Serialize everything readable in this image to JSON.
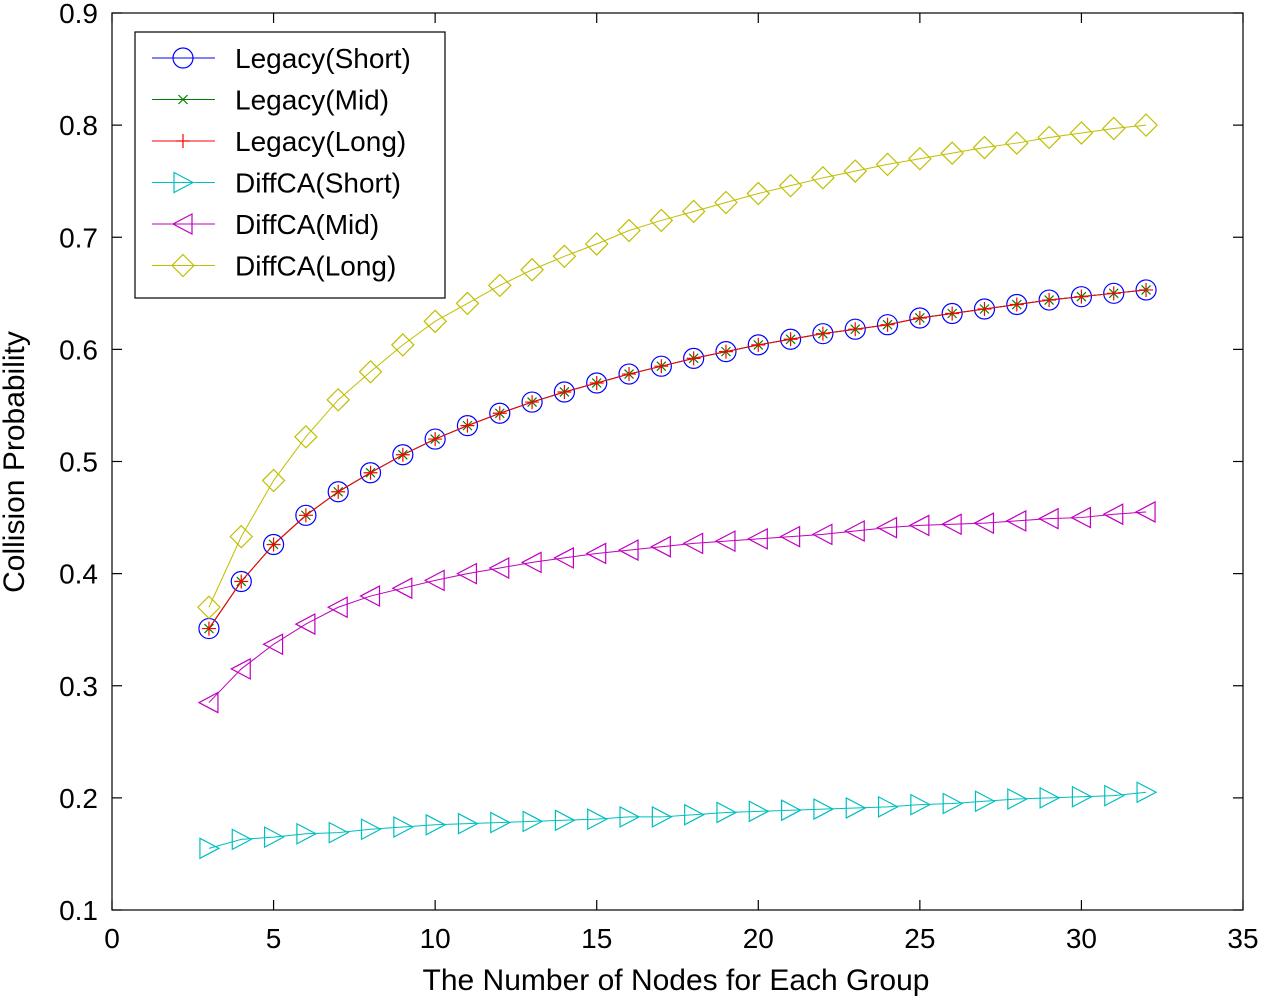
{
  "chart_data": {
    "type": "line",
    "title": "",
    "xlabel": "The Number of Nodes for Each Group",
    "ylabel": "Collision Probability",
    "xlim": [
      0,
      35
    ],
    "ylim": [
      0.1,
      0.9
    ],
    "xticks": [
      0,
      5,
      10,
      15,
      20,
      25,
      30,
      35
    ],
    "yticks": [
      0.1,
      0.2,
      0.3,
      0.4,
      0.5,
      0.6,
      0.7,
      0.8,
      0.9
    ],
    "xtick_labels": [
      "0",
      "5",
      "10",
      "15",
      "20",
      "25",
      "30",
      "35"
    ],
    "ytick_labels": [
      "0.1",
      "0.2",
      "0.3",
      "0.4",
      "0.5",
      "0.6",
      "0.7",
      "0.8",
      "0.9"
    ],
    "grid": false,
    "legend_position": "top-left",
    "x": [
      3,
      4,
      5,
      6,
      7,
      8,
      9,
      10,
      11,
      12,
      13,
      14,
      15,
      16,
      17,
      18,
      19,
      20,
      21,
      22,
      23,
      24,
      25,
      26,
      27,
      28,
      29,
      30,
      31,
      32
    ],
    "series": [
      {
        "name": "Legacy(Short)",
        "color": "#0000ff",
        "marker": "circle",
        "values": [
          0.351,
          0.393,
          0.426,
          0.452,
          0.473,
          0.49,
          0.506,
          0.52,
          0.532,
          0.543,
          0.553,
          0.562,
          0.57,
          0.578,
          0.585,
          0.592,
          0.598,
          0.604,
          0.609,
          0.614,
          0.618,
          0.622,
          0.628,
          0.632,
          0.636,
          0.64,
          0.644,
          0.647,
          0.65,
          0.653
        ]
      },
      {
        "name": "Legacy(Mid)",
        "color": "#008000",
        "marker": "x",
        "values": [
          0.351,
          0.393,
          0.426,
          0.452,
          0.473,
          0.49,
          0.506,
          0.52,
          0.532,
          0.543,
          0.553,
          0.562,
          0.57,
          0.578,
          0.585,
          0.592,
          0.598,
          0.604,
          0.609,
          0.614,
          0.618,
          0.622,
          0.628,
          0.632,
          0.636,
          0.64,
          0.644,
          0.647,
          0.65,
          0.653
        ]
      },
      {
        "name": "Legacy(Long)",
        "color": "#ff0000",
        "marker": "plus",
        "values": [
          0.351,
          0.393,
          0.426,
          0.452,
          0.473,
          0.49,
          0.506,
          0.52,
          0.532,
          0.543,
          0.553,
          0.562,
          0.57,
          0.578,
          0.585,
          0.592,
          0.598,
          0.604,
          0.609,
          0.614,
          0.618,
          0.622,
          0.628,
          0.632,
          0.636,
          0.64,
          0.644,
          0.647,
          0.65,
          0.653
        ]
      },
      {
        "name": "DiffCA(Short)",
        "color": "#00bfbf",
        "marker": "triangle-right",
        "values": [
          0.155,
          0.163,
          0.165,
          0.168,
          0.169,
          0.172,
          0.174,
          0.176,
          0.177,
          0.178,
          0.179,
          0.18,
          0.181,
          0.183,
          0.183,
          0.185,
          0.187,
          0.188,
          0.189,
          0.19,
          0.191,
          0.192,
          0.194,
          0.195,
          0.197,
          0.199,
          0.2,
          0.201,
          0.202,
          0.205
        ]
      },
      {
        "name": "DiffCA(Mid)",
        "color": "#bf00bf",
        "marker": "triangle-left",
        "values": [
          0.285,
          0.315,
          0.337,
          0.355,
          0.37,
          0.38,
          0.387,
          0.394,
          0.4,
          0.405,
          0.41,
          0.414,
          0.418,
          0.421,
          0.424,
          0.427,
          0.429,
          0.431,
          0.433,
          0.435,
          0.438,
          0.441,
          0.443,
          0.444,
          0.445,
          0.447,
          0.449,
          0.45,
          0.453,
          0.455
        ]
      },
      {
        "name": "DiffCA(Long)",
        "color": "#bfbf00",
        "marker": "diamond",
        "values": [
          0.37,
          0.433,
          0.483,
          0.522,
          0.555,
          0.58,
          0.604,
          0.625,
          0.641,
          0.657,
          0.671,
          0.683,
          0.694,
          0.706,
          0.715,
          0.723,
          0.731,
          0.739,
          0.746,
          0.753,
          0.759,
          0.765,
          0.77,
          0.775,
          0.78,
          0.784,
          0.789,
          0.793,
          0.797,
          0.8
        ]
      }
    ]
  }
}
